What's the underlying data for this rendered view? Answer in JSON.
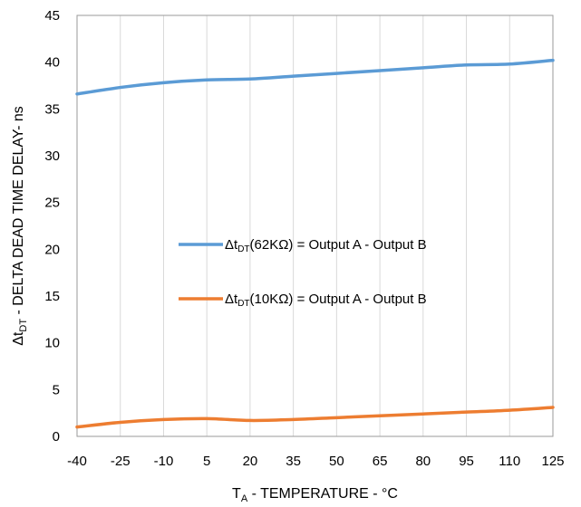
{
  "chart_data": {
    "type": "line",
    "xlabel": {
      "main": "T",
      "sub": "A",
      "rest": " - TEMPERATURE - °C"
    },
    "ylabel": {
      "pre": "Δt",
      "sub": "DT",
      "rest": " - DELTA DEAD TIME DELAY- ns"
    },
    "x_ticks": [
      -40,
      -25,
      -10,
      5,
      20,
      35,
      50,
      65,
      80,
      95,
      110,
      125
    ],
    "y_ticks": [
      0,
      5,
      10,
      15,
      20,
      25,
      30,
      35,
      40,
      45
    ],
    "xlim": [
      -40,
      125
    ],
    "ylim": [
      0,
      45
    ],
    "grid": "vertical",
    "series": [
      {
        "legend": {
          "pre": "Δt",
          "sub": "DT",
          "rest": "(62KΩ) = Output A - Output B"
        },
        "color": "#5b9bd5",
        "x": [
          -40,
          -25,
          -10,
          5,
          20,
          35,
          50,
          65,
          80,
          95,
          110,
          125
        ],
        "y": [
          36.6,
          37.3,
          37.8,
          38.1,
          38.2,
          38.5,
          38.8,
          39.1,
          39.4,
          39.7,
          39.8,
          40.2
        ]
      },
      {
        "legend": {
          "pre": "Δt",
          "sub": "DT",
          "rest": "(10KΩ) = Output A - Output B"
        },
        "color": "#ed7d31",
        "x": [
          -40,
          -25,
          -10,
          5,
          20,
          35,
          50,
          65,
          80,
          95,
          110,
          125
        ],
        "y": [
          1.0,
          1.5,
          1.8,
          1.9,
          1.7,
          1.8,
          2.0,
          2.2,
          2.4,
          2.6,
          2.8,
          3.1
        ]
      }
    ]
  }
}
